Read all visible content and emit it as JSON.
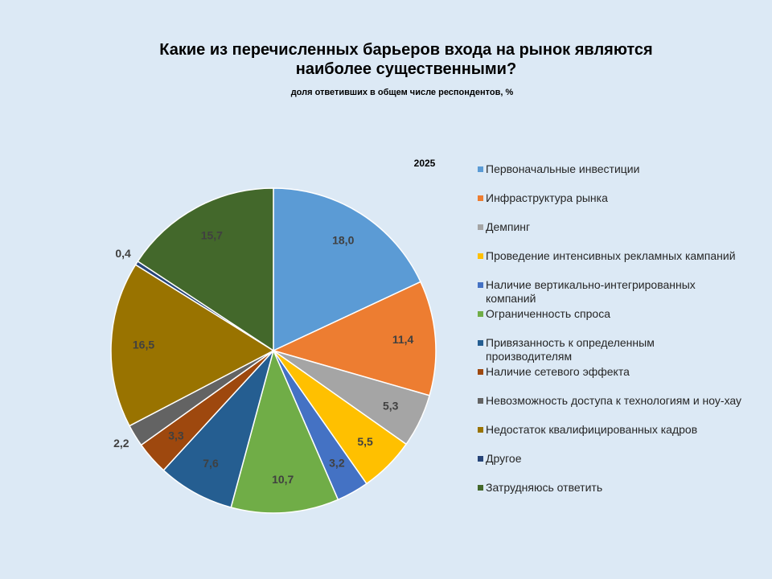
{
  "chart_data": {
    "type": "pie",
    "title": "Какие из перечисленных барьеров входа на рынок являются наиболее существенными?",
    "subtitle": "доля ответивших в общем числе респондентов, %",
    "series_name": "2025",
    "categories": [
      "Первоначальные инвестиции",
      "Инфраструктура  рынка",
      "Демпинг",
      "Проведение  интенсивных  рекламных кампаний",
      "Наличие  вертикально-интегрированных компаний",
      "Ограниченность  спроса",
      "Привязанность к определенным производителям",
      "Наличие  сетевого эффекта",
      "Невозможность доступа  к технологиям  и ноу-хау",
      "Недостаток квалифицированных  кадров",
      "Другое",
      "Затрудняюсь ответить"
    ],
    "values": [
      18.0,
      11.4,
      5.3,
      5.5,
      3.2,
      10.7,
      7.6,
      3.3,
      2.2,
      16.5,
      0.4,
      15.7
    ],
    "value_labels": [
      "18,0",
      "11,4",
      "5,3",
      "5,5",
      "3,2",
      "10,7",
      "7,6",
      "3,3",
      "2,2",
      "16,5",
      "0,4",
      "15,7"
    ],
    "colors": [
      "#5b9bd5",
      "#ed7d31",
      "#a5a5a5",
      "#ffc000",
      "#4472c4",
      "#70ad47",
      "#255e91",
      "#9e480e",
      "#636363",
      "#997300",
      "#264478",
      "#43682b"
    ],
    "legend": "right"
  }
}
